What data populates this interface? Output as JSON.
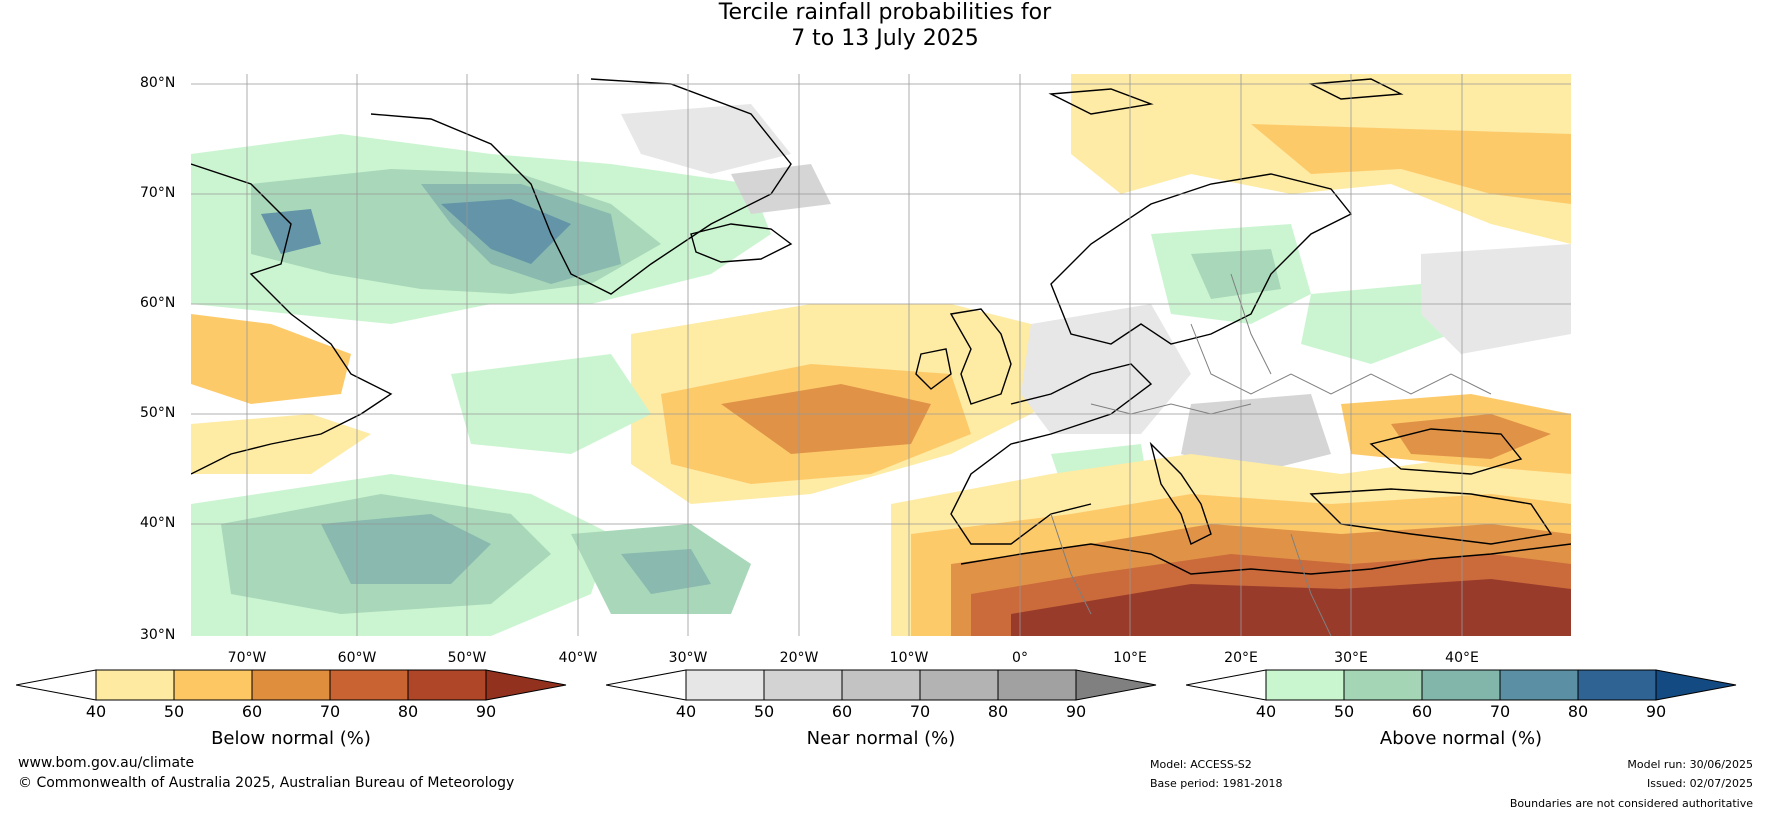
{
  "title": {
    "line1": "Tercile rainfall probabilities for",
    "line2": "7 to 13 July 2025"
  },
  "map": {
    "lat_labels": [
      "80°N",
      "70°N",
      "60°N",
      "50°N",
      "40°N",
      "30°N"
    ],
    "lon_labels": [
      "70°W",
      "60°W",
      "50°W",
      "40°W",
      "30°W",
      "20°W",
      "10°W",
      "0°",
      "10°E",
      "20°E",
      "30°E",
      "40°E"
    ]
  },
  "colorbars": [
    {
      "title": "Below normal (%)",
      "ticks": [
        "40",
        "50",
        "60",
        "70",
        "80",
        "90"
      ],
      "colors": [
        "#ffffff",
        "#feeaa0",
        "#fdc863",
        "#df8e3e",
        "#c96331",
        "#ae4627",
        "#93311f"
      ]
    },
    {
      "title": "Near normal (%)",
      "ticks": [
        "40",
        "50",
        "60",
        "70",
        "80",
        "90"
      ],
      "colors": [
        "#ffffff",
        "#e6e6e6",
        "#d3d3d3",
        "#c3c3c3",
        "#b3b3b3",
        "#a1a1a1",
        "#808080"
      ]
    },
    {
      "title": "Above normal (%)",
      "ticks": [
        "40",
        "50",
        "60",
        "70",
        "80",
        "90"
      ],
      "colors": [
        "#ffffff",
        "#c9f5cf",
        "#a4d6b6",
        "#83b6ab",
        "#5b8fa3",
        "#2f6394",
        "#134a82"
      ]
    }
  ],
  "footer": {
    "website": "www.bom.gov.au/climate",
    "copyright": "© Commonwealth of Australia 2025, Australian Bureau of Meteorology",
    "model": "Model: ACCESS-S2",
    "base_period": "Base period: 1981-2018",
    "model_run": "Model run: 30/06/2025",
    "issued": "Issued: 02/07/2025",
    "disclaimer": "Boundaries are not considered authoritative"
  }
}
